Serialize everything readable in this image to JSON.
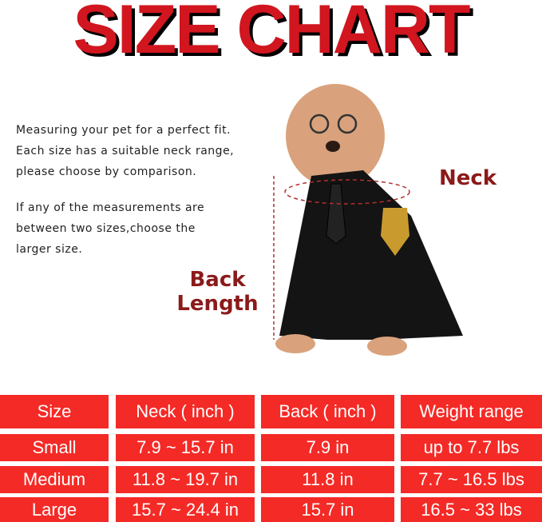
{
  "title": "SIZE CHART",
  "instructions": {
    "line1": "Measuring your pet for a perfect fit.",
    "line2": "Each size has a suitable neck range,",
    "line3": "please choose by comparison.",
    "line4": "If any of the measurements are",
    "line5": "between two sizes,choose the",
    "line6": "larger size."
  },
  "labels": {
    "neck": "Neck",
    "back_line1": "Back",
    "back_line2": "Length"
  },
  "colors": {
    "title": "#d1161f",
    "cell": "#f42a26",
    "label": "#8b1a1a"
  },
  "table": {
    "headers": [
      "Size",
      "Neck ( inch )",
      "Back ( inch )",
      "Weight range"
    ],
    "rows": [
      [
        "Small",
        "7.9 ~ 15.7 in",
        "7.9 in",
        "up to 7.7 lbs"
      ],
      [
        "Medium",
        "11.8 ~ 19.7 in",
        "11.8 in",
        "7.7 ~ 16.5 lbs"
      ],
      [
        "Large",
        "15.7 ~ 24.4 in",
        "15.7 in",
        "16.5 ~ 33 lbs"
      ]
    ]
  }
}
